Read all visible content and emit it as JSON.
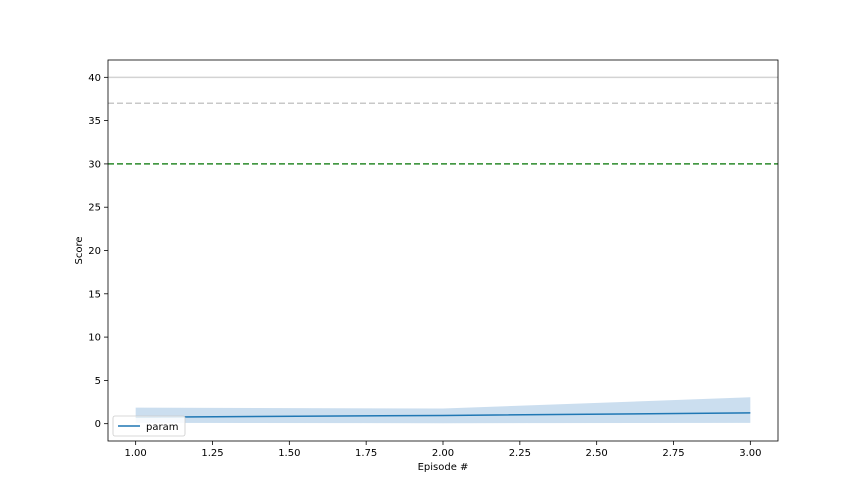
{
  "chart_data": {
    "type": "line",
    "title": "",
    "xlabel": "Episode #",
    "ylabel": "Score",
    "xlim": [
      0.91,
      3.09
    ],
    "ylim": [
      -2.0,
      42.0
    ],
    "xticks": [
      1.0,
      1.25,
      1.5,
      1.75,
      2.0,
      2.25,
      2.5,
      2.75,
      3.0
    ],
    "xtick_labels": [
      "1.00",
      "1.25",
      "1.50",
      "1.75",
      "2.00",
      "2.25",
      "2.50",
      "2.75",
      "3.00"
    ],
    "yticks": [
      0,
      5,
      10,
      15,
      20,
      25,
      30,
      35,
      40
    ],
    "ytick_labels": [
      "0",
      "5",
      "10",
      "15",
      "20",
      "25",
      "30",
      "35",
      "40"
    ],
    "grid": false,
    "legend_position": "lower-left",
    "series": [
      {
        "name": "param",
        "color": "#1f77b4",
        "x": [
          1,
          2,
          3
        ],
        "y": [
          0.75,
          0.95,
          1.25
        ],
        "band_lower": [
          0.1,
          0.05,
          0.1
        ],
        "band_upper": [
          1.85,
          1.75,
          3.05
        ],
        "band_color": "#b9d3e9"
      }
    ],
    "reference_lines": [
      {
        "y": 40,
        "style": "solid",
        "color": "#d3d3d3"
      },
      {
        "y": 37,
        "style": "dashed",
        "color": "#c8c8c8"
      },
      {
        "y": 30,
        "style": "dashed",
        "color": "#2a8a2a"
      }
    ]
  }
}
